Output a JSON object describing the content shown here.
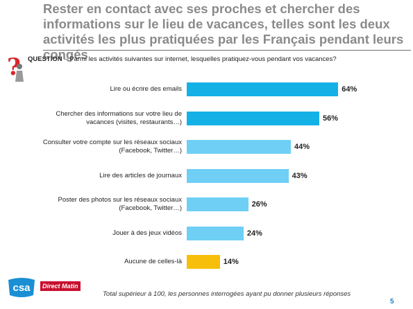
{
  "chart_data": {
    "type": "bar",
    "orientation": "horizontal",
    "title": "Rester en contact avec ses proches et chercher des informations sur le lieu de vacances, telles sont les deux activités les plus pratiquées par les Français pendant leurs congés",
    "question_label": "QUESTION",
    "question": "– Parmi les activités suivantes sur internet, lesquelles pratiquez-vous pendant vos vacances?",
    "categories": [
      "Lire ou écrire des emails",
      "Chercher des informations sur votre lieu de vacances (visites, restaurants…)",
      "Consulter votre compte sur les réseaux sociaux (Facebook, Twitter…)",
      "Lire des articles de journaux",
      "Poster des photos sur les réseaux sociaux (Facebook, Twitter…)",
      "Jouer à des jeux vidéos",
      "Aucune de celles-là"
    ],
    "values": [
      64,
      56,
      44,
      43,
      26,
      24,
      14
    ],
    "value_labels": [
      "64%",
      "56%",
      "44%",
      "43%",
      "26%",
      "24%",
      "14%"
    ],
    "colors": [
      "#14b1e7",
      "#14b1e7",
      "#6fcff5",
      "#6fcff5",
      "#6fcff5",
      "#6fcff5",
      "#f7bf0b"
    ],
    "note": "Total supérieur à 100, les personnes interrogées ayant pu donner plusieurs réponses",
    "logos": [
      "csa",
      "Direct Matin"
    ],
    "page_number": "5"
  }
}
